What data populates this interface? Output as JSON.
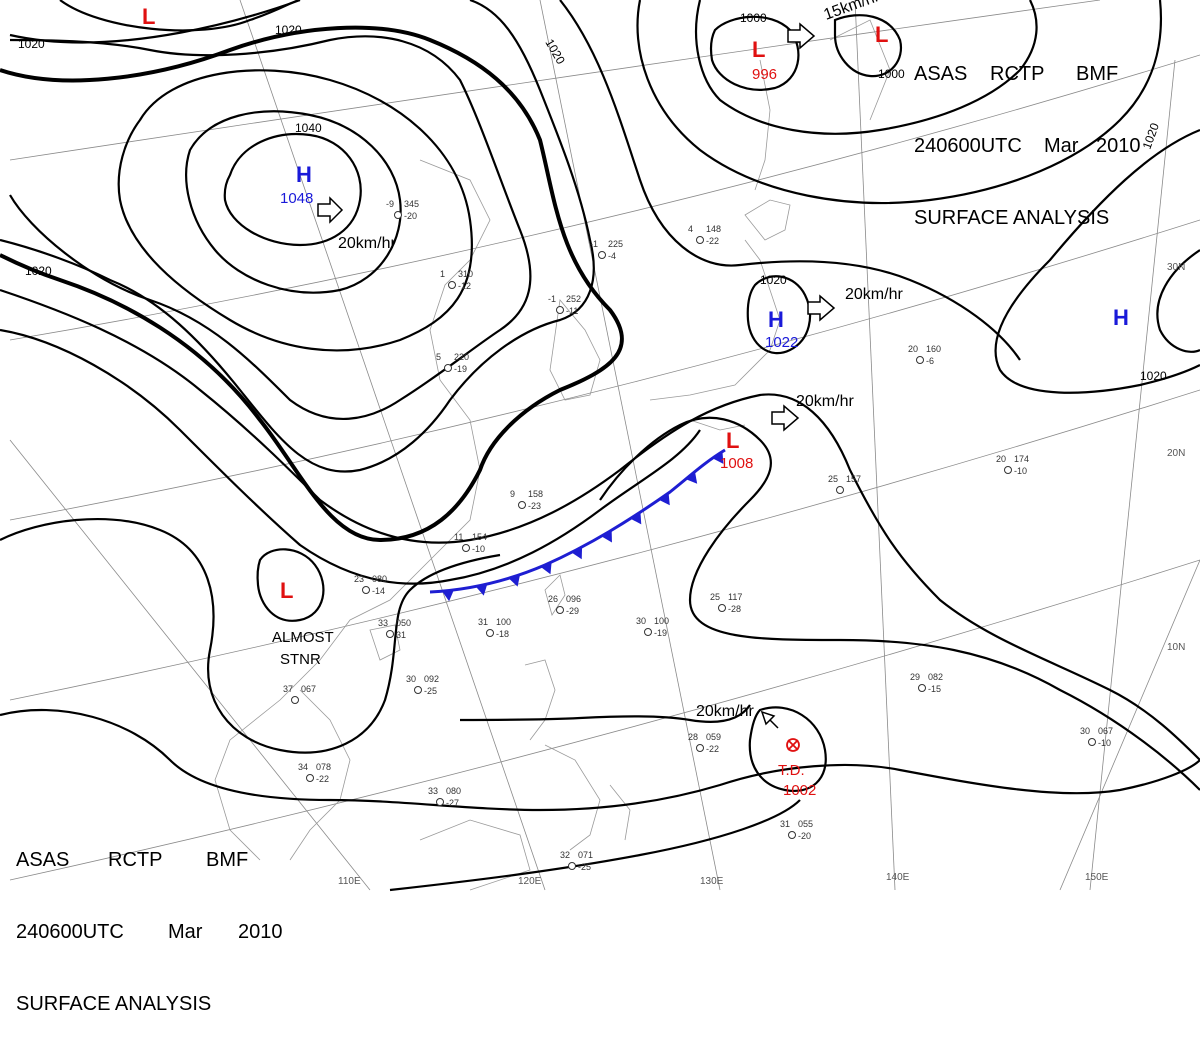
{
  "header_top": {
    "row1": [
      "ASAS",
      "RCTP",
      "BMF"
    ],
    "row2": [
      "240600UTC",
      "Mar",
      "2010"
    ],
    "row3": "SURFACE ANALYSIS"
  },
  "header_bottom": {
    "row1": [
      "ASAS",
      "RCTP",
      "BMF"
    ],
    "row2": [
      "240600UTC",
      "Mar",
      "2010"
    ],
    "row3": "SURFACE ANALYSIS"
  },
  "longitude_labels": [
    "110E",
    "120E",
    "130E",
    "140E",
    "150E"
  ],
  "latitude_labels": [
    "30N",
    "20N",
    "10N"
  ],
  "isobar_labels": [
    "1020",
    "1020",
    "1020",
    "1040",
    "1020",
    "1020",
    "1000",
    "1000",
    "1020",
    "1020"
  ],
  "pressure_systems": [
    {
      "type": "H",
      "value": "1048",
      "color": "#1a1ad9"
    },
    {
      "type": "H",
      "value": "1022",
      "color": "#1a1ad9"
    },
    {
      "type": "H",
      "value": "",
      "color": "#1a1ad9"
    },
    {
      "type": "L",
      "value": "996",
      "color": "#e01010"
    },
    {
      "type": "L",
      "value": "1008",
      "color": "#e01010"
    },
    {
      "type": "L",
      "value": "",
      "color": "#e01010"
    },
    {
      "type": "L",
      "value": "",
      "color": "#e01010"
    },
    {
      "type": "L",
      "value": "",
      "color": "#e01010"
    }
  ],
  "tropical_depression": {
    "label": "T.D.",
    "value": "1002",
    "color": "#e01010"
  },
  "motion_labels": [
    "20km/hr",
    "20km/hr",
    "20km/hr",
    "15km/hr",
    "20km/hr"
  ],
  "stationary_note": [
    "ALMOST",
    "STNR"
  ],
  "front": {
    "type": "cold",
    "color": "#1e1ed2"
  },
  "stations": [
    {
      "t": "-9",
      "p": "345",
      "d": "-20"
    },
    {
      "t": "-1",
      "p": "225",
      "d": "-4"
    },
    {
      "t": "4",
      "p": "148",
      "d": "-22"
    },
    {
      "t": "1",
      "p": "310",
      "d": "-12"
    },
    {
      "t": "-1",
      "p": "252",
      "d": "-11"
    },
    {
      "t": "5",
      "p": "220",
      "d": "-19"
    },
    {
      "t": "9",
      "p": "158",
      "d": "-23"
    },
    {
      "t": "11",
      "p": "154",
      "d": "-10"
    },
    {
      "t": "23",
      "p": "080",
      "d": "-14"
    },
    {
      "t": "33",
      "p": "050",
      "d": "31"
    },
    {
      "t": "30",
      "p": "092",
      "d": "-25"
    },
    {
      "t": "37",
      "p": "067",
      "d": ""
    },
    {
      "t": "34",
      "p": "078",
      "d": "-22"
    },
    {
      "t": "33",
      "p": "080",
      "d": "-27"
    },
    {
      "t": "31",
      "p": "100",
      "d": "-18"
    },
    {
      "t": "26",
      "p": "096",
      "d": "-29"
    },
    {
      "t": "30",
      "p": "100",
      "d": "-19"
    },
    {
      "t": "20",
      "p": "174",
      "d": "-10"
    },
    {
      "t": "25",
      "p": "157",
      "d": ""
    },
    {
      "t": "25",
      "p": "117",
      "d": "-28"
    },
    {
      "t": "29",
      "p": "082",
      "d": "-15"
    },
    {
      "t": "30",
      "p": "067",
      "d": "-10"
    },
    {
      "t": "31",
      "p": "055",
      "d": "-20"
    },
    {
      "t": "28",
      "p": "059",
      "d": "-22"
    },
    {
      "t": "32",
      "p": "071",
      "d": "-25"
    },
    {
      "t": "20",
      "p": "160",
      "d": "-6"
    }
  ]
}
